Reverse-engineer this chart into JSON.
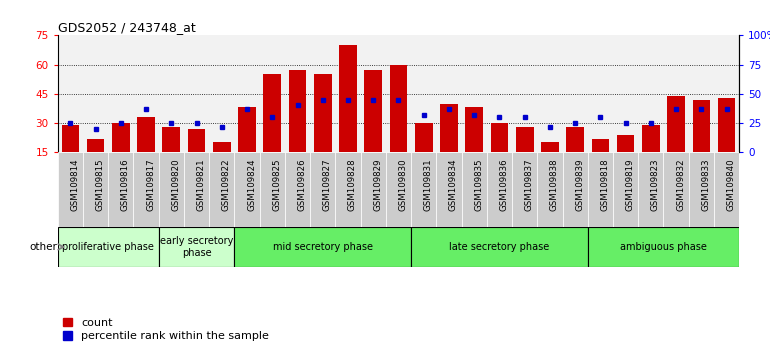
{
  "title": "GDS2052 / 243748_at",
  "samples": [
    "GSM109814",
    "GSM109815",
    "GSM109816",
    "GSM109817",
    "GSM109820",
    "GSM109821",
    "GSM109822",
    "GSM109824",
    "GSM109825",
    "GSM109826",
    "GSM109827",
    "GSM109828",
    "GSM109829",
    "GSM109830",
    "GSM109831",
    "GSM109834",
    "GSM109835",
    "GSM109836",
    "GSM109837",
    "GSM109838",
    "GSM109839",
    "GSM109818",
    "GSM109819",
    "GSM109823",
    "GSM109832",
    "GSM109833",
    "GSM109840"
  ],
  "count_values": [
    29,
    22,
    30,
    33,
    28,
    27,
    20,
    38,
    55,
    57,
    55,
    70,
    57,
    60,
    30,
    40,
    38,
    30,
    28,
    20,
    28,
    22,
    24,
    29,
    44,
    42,
    43
  ],
  "percentile_values": [
    25,
    20,
    25,
    37,
    25,
    25,
    22,
    37,
    30,
    40,
    45,
    45,
    45,
    45,
    32,
    37,
    32,
    30,
    30,
    22,
    25,
    30,
    25,
    25,
    37,
    37,
    37
  ],
  "phases": [
    {
      "name": "proliferative phase",
      "start": 0,
      "end": 3,
      "color": "#ccffcc"
    },
    {
      "name": "early secretory\nphase",
      "start": 4,
      "end": 6,
      "color": "#ccffcc"
    },
    {
      "name": "mid secretory phase",
      "start": 7,
      "end": 13,
      "color": "#66ee66"
    },
    {
      "name": "late secretory phase",
      "start": 14,
      "end": 20,
      "color": "#66ee66"
    },
    {
      "name": "ambiguous phase",
      "start": 21,
      "end": 26,
      "color": "#66ee66"
    }
  ],
  "ylim_left": [
    15,
    75
  ],
  "yticks_left": [
    15,
    30,
    45,
    60,
    75
  ],
  "ylim_right": [
    0,
    100
  ],
  "yticks_right": [
    0,
    25,
    50,
    75,
    100
  ],
  "bar_color": "#cc0000",
  "percentile_color": "#0000cc",
  "col_bg_color": "#cccccc",
  "plot_bg_color": "#ffffff"
}
